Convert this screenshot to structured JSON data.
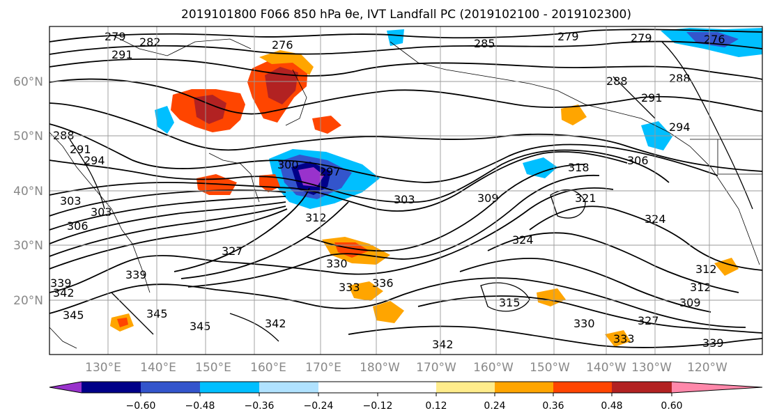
{
  "figure": {
    "title": "2019101800 F066 850 hPa θe, IVT Landfall PC (2019102100 - 2019102300)"
  },
  "map": {
    "lat_labels": [
      "60°N",
      "50°N",
      "40°N",
      "30°N",
      "20°N"
    ],
    "lon_labels": [
      "130°E",
      "140°E",
      "150°E",
      "160°E",
      "170°E",
      "180°W",
      "170°W",
      "160°W",
      "150°W",
      "140°W",
      "130°W",
      "120°W"
    ],
    "contour_labels": [
      "279",
      "282",
      "276",
      "285",
      "279",
      "279",
      "276",
      "288",
      "288",
      "291",
      "291",
      "294",
      "288",
      "291",
      "294",
      "297",
      "300",
      "303",
      "303",
      "306",
      "309",
      "312",
      "318",
      "321",
      "324",
      "306",
      "327",
      "330",
      "333",
      "336",
      "339",
      "339",
      "342",
      "345",
      "345",
      "342",
      "342",
      "345",
      "330",
      "327",
      "333",
      "339",
      "312",
      "309",
      "312",
      "324",
      "315",
      "303"
    ],
    "anomaly_regions": [
      {
        "name": "positive-anomaly-siberia",
        "level": 0.48
      },
      {
        "name": "positive-anomaly-kamchatka",
        "level": 0.48
      },
      {
        "name": "negative-anomaly-nw-pacific",
        "level": -0.6
      },
      {
        "name": "positive-anomaly-subtropical-jet",
        "level": 0.36
      },
      {
        "name": "positive-anomaly-central-pacific",
        "level": 0.36
      },
      {
        "name": "negative-anomaly-alaska-gulf",
        "level": -0.36
      },
      {
        "name": "negative-anomaly-arctic",
        "level": -0.48
      }
    ]
  },
  "colorbar": {
    "tick_labels": [
      "−0.60",
      "−0.48",
      "−0.36",
      "−0.24",
      "−0.12",
      "0.12",
      "0.24",
      "0.36",
      "0.48",
      "0.60"
    ],
    "colors": [
      "#9932cc",
      "#000088",
      "#3355cc",
      "#00bfff",
      "#b0e2ff",
      "#ffffff",
      "#ffec8b",
      "#ffa500",
      "#ff4500",
      "#b22222",
      "#ff88aa"
    ]
  }
}
